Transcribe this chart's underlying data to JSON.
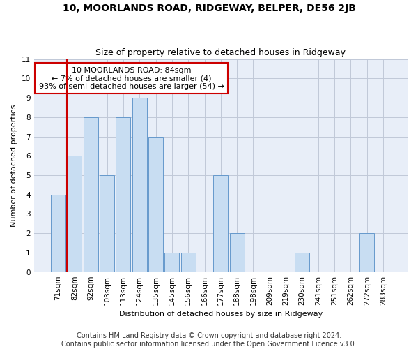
{
  "title": "10, MOORLANDS ROAD, RIDGEWAY, BELPER, DE56 2JB",
  "subtitle": "Size of property relative to detached houses in Ridgeway",
  "xlabel": "Distribution of detached houses by size in Ridgeway",
  "ylabel": "Number of detached properties",
  "categories": [
    "71sqm",
    "82sqm",
    "92sqm",
    "103sqm",
    "113sqm",
    "124sqm",
    "135sqm",
    "145sqm",
    "156sqm",
    "166sqm",
    "177sqm",
    "188sqm",
    "198sqm",
    "209sqm",
    "219sqm",
    "230sqm",
    "241sqm",
    "251sqm",
    "262sqm",
    "272sqm",
    "283sqm"
  ],
  "values": [
    4,
    6,
    8,
    5,
    8,
    9,
    7,
    1,
    1,
    0,
    5,
    2,
    0,
    0,
    0,
    1,
    0,
    0,
    0,
    2,
    0
  ],
  "bar_color": "#c8ddf2",
  "bar_edge_color": "#6699cc",
  "highlight_bar_index": 1,
  "highlight_line_color": "#cc0000",
  "annotation_text": "10 MOORLANDS ROAD: 84sqm\n← 7% of detached houses are smaller (4)\n93% of semi-detached houses are larger (54) →",
  "annotation_box_color": "#ffffff",
  "annotation_box_edge": "#cc0000",
  "ylim": [
    0,
    11
  ],
  "yticks": [
    0,
    1,
    2,
    3,
    4,
    5,
    6,
    7,
    8,
    9,
    10,
    11
  ],
  "footnote": "Contains HM Land Registry data © Crown copyright and database right 2024.\nContains public sector information licensed under the Open Government Licence v3.0.",
  "title_fontsize": 10,
  "subtitle_fontsize": 9,
  "axis_label_fontsize": 8,
  "tick_fontsize": 7.5,
  "annotation_fontsize": 8,
  "footnote_fontsize": 7,
  "grid_color": "#c0c8d8",
  "background_color": "#ffffff",
  "axes_background": "#e8eef8"
}
